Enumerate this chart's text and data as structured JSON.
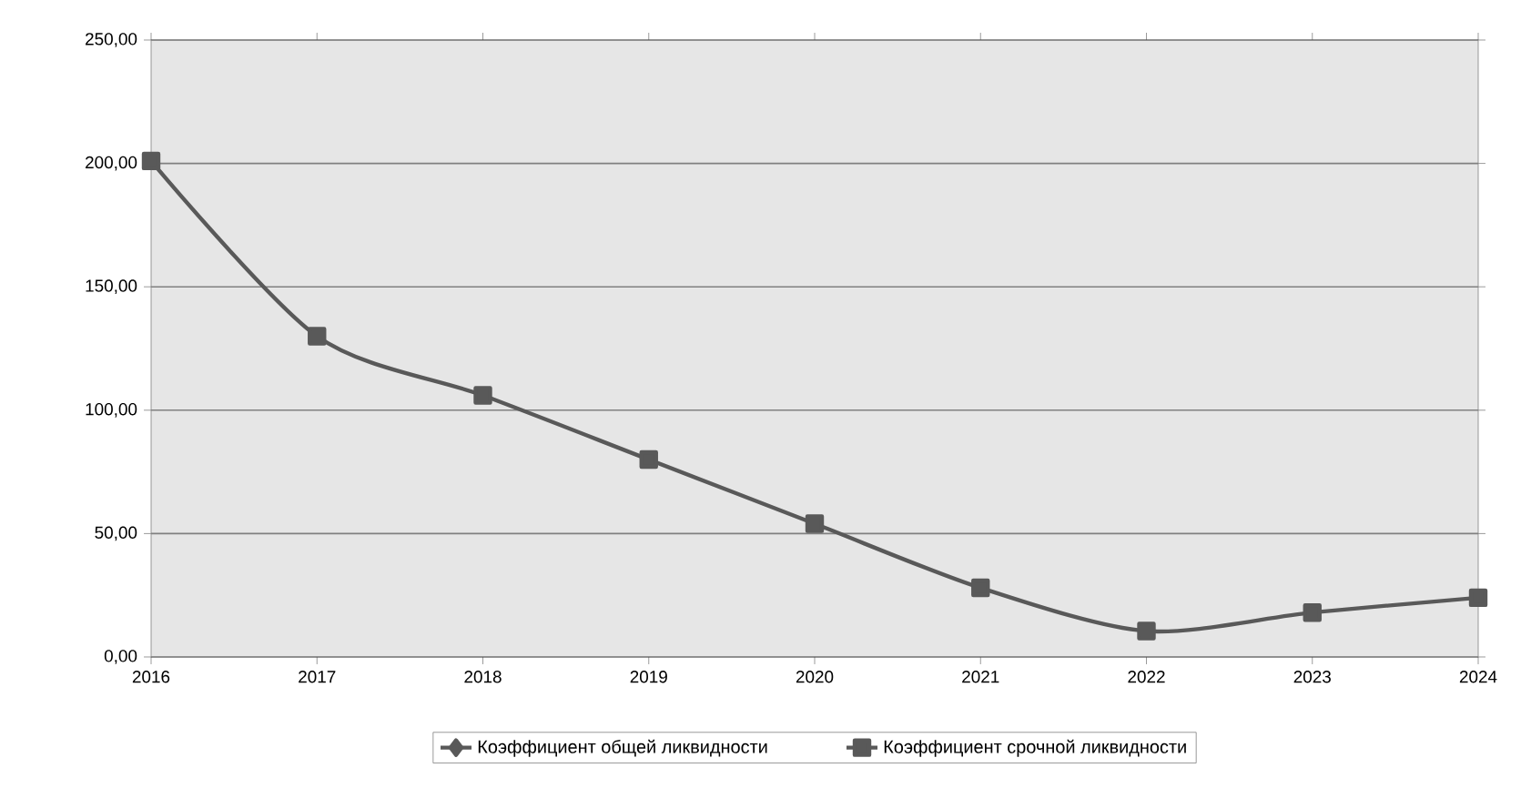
{
  "chart_data": {
    "type": "line",
    "x": [
      2016,
      2017,
      2018,
      2019,
      2020,
      2021,
      2022,
      2023,
      2024
    ],
    "series": [
      {
        "name": "Коэффициент общей ликвидности",
        "color": "#595959",
        "marker": "diamond",
        "values": [
          null,
          null,
          null,
          null,
          null,
          null,
          null,
          null,
          null
        ]
      },
      {
        "name": "Коэффициент срочной ликвидности",
        "color": "#595959",
        "marker": "square",
        "values": [
          201,
          130,
          106,
          80,
          54,
          28,
          10.5,
          18,
          24
        ]
      }
    ],
    "xlim": [
      2016,
      2024
    ],
    "xticks": [
      2016,
      2017,
      2018,
      2019,
      2020,
      2021,
      2022,
      2023,
      2024
    ],
    "ylim": [
      0,
      250
    ],
    "yticks": [
      {
        "value": 0,
        "label": "0,00"
      },
      {
        "value": 50,
        "label": "50,00"
      },
      {
        "value": 100,
        "label": "100,00"
      },
      {
        "value": 150,
        "label": "150,00"
      },
      {
        "value": 200,
        "label": "200,00"
      },
      {
        "value": 250,
        "label": "250,00"
      }
    ],
    "grid": "y",
    "legend": "bottom",
    "line_style": "solid"
  }
}
